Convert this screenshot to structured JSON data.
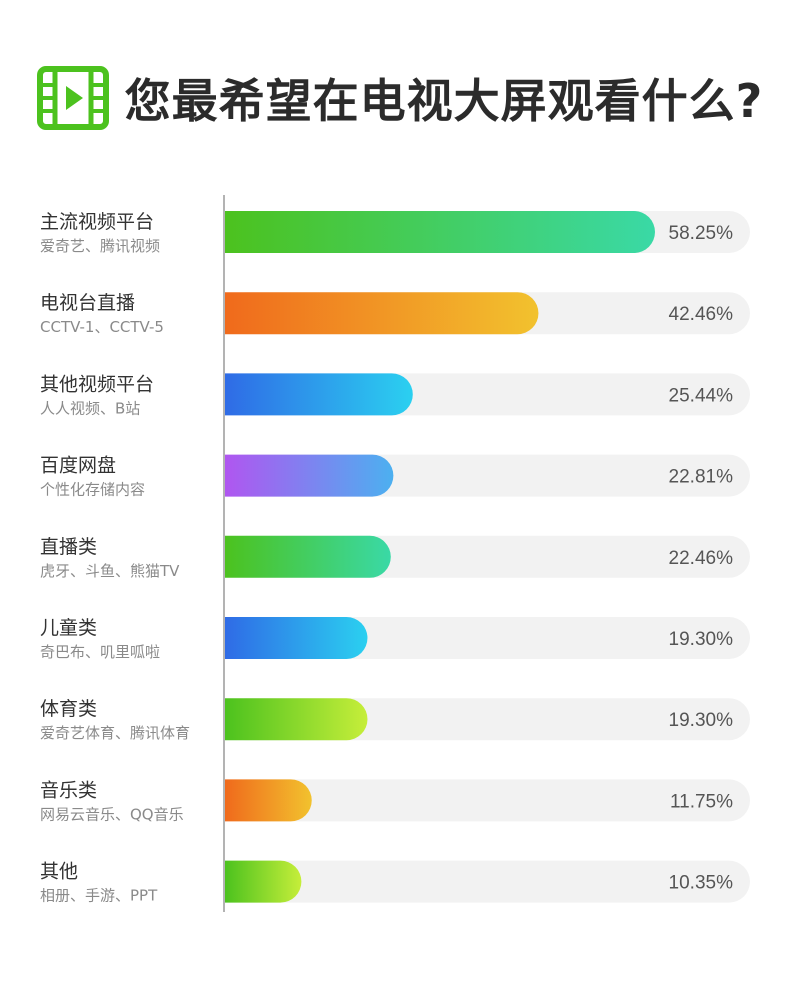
{
  "header": {
    "title": "您最希望在电视大屏观看什么?",
    "icon": "film-play-icon",
    "icon_color": "#4cc21e"
  },
  "chart_data": {
    "type": "bar",
    "orientation": "horizontal",
    "xlim": [
      0,
      60
    ],
    "grid": false,
    "categories": [
      "主流视频平台",
      "电视台直播",
      "其他视频平台",
      "百度网盘",
      "直播类",
      "儿童类",
      "体育类",
      "音乐类",
      "其他"
    ],
    "subtitles": [
      "爱奇艺、腾讯视频",
      "CCTV-1、CCTV-5",
      "人人视频、B站",
      "个性化存储内容",
      "虎牙、斗鱼、熊猫TV",
      "奇巴布、叽里呱啦",
      "爱奇艺体育、腾讯体育",
      "网易云音乐、QQ音乐",
      "相册、手游、PPT"
    ],
    "values": [
      58.25,
      42.46,
      25.44,
      22.81,
      22.46,
      19.3,
      19.3,
      11.75,
      10.35
    ],
    "value_labels": [
      "58.25%",
      "42.46%",
      "25.44%",
      "22.81%",
      "22.46%",
      "19.30%",
      "19.30%",
      "11.75%",
      "10.35%"
    ],
    "bar_gradients": [
      [
        "#4cc21e",
        "#3ad9a6"
      ],
      [
        "#f06a1c",
        "#f2c22e"
      ],
      [
        "#2f6be6",
        "#2bd0f0"
      ],
      [
        "#b056f0",
        "#4cb0f0"
      ],
      [
        "#4cc21e",
        "#3ad9a6"
      ],
      [
        "#2f6be6",
        "#2bd0f0"
      ],
      [
        "#4cc21e",
        "#c6ee3a"
      ],
      [
        "#f06a1c",
        "#f2c22e"
      ],
      [
        "#4cc21e",
        "#c6ee3a"
      ]
    ],
    "track_color": "#f2f2f2",
    "axis_color": "#9a9a9a"
  }
}
